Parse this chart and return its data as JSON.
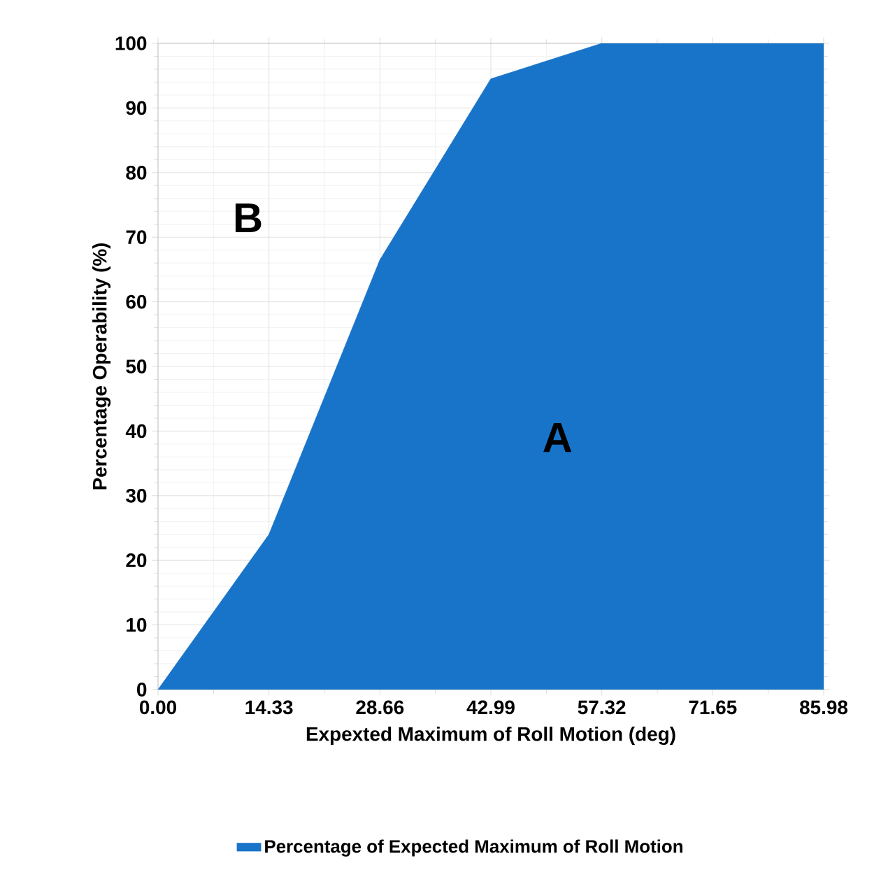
{
  "chart_data": {
    "type": "area",
    "xlabel": "Expexted Maximum of Roll Motion (deg)",
    "ylabel": "Percentage Operability (%)",
    "x": [
      0,
      14.33,
      28.66,
      42.99,
      57.32,
      71.65,
      85.98
    ],
    "series": [
      {
        "name": "Percentage of Expected Maximum of Roll Motion",
        "color": "#1874c9",
        "values": [
          0,
          24,
          66.5,
          94.5,
          100,
          100,
          100
        ]
      }
    ],
    "xlim": [
      0,
      85.98
    ],
    "ylim": [
      0,
      100
    ],
    "xticks": [
      {
        "value": 0,
        "label": "0.00"
      },
      14.33,
      28.66,
      42.99,
      57.32,
      71.65,
      85.98
    ],
    "yticks": [
      0,
      10,
      20,
      30,
      40,
      50,
      60,
      70,
      80,
      90,
      100
    ],
    "grid": true,
    "legend": "bottom",
    "annotations": [
      "A",
      "B"
    ]
  }
}
